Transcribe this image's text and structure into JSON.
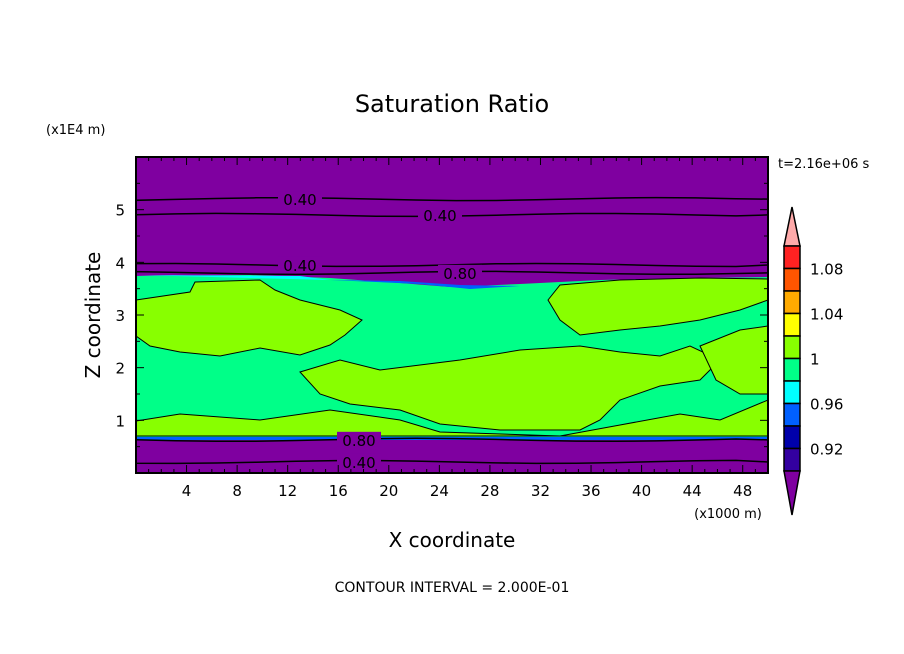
{
  "chart_data": {
    "type": "contour",
    "title": "Saturation Ratio",
    "xlabel": "X coordinate",
    "ylabel": "Z coordinate",
    "x_units": "(x1000 m)",
    "y_units": "(x1E4 m)",
    "time_label": "t=2.16e+06 s",
    "footer": "CONTOUR INTERVAL = 2.000E-01",
    "xlim": [
      0,
      50
    ],
    "ylim": [
      0,
      6
    ],
    "x_ticks": [
      4,
      8,
      12,
      16,
      20,
      24,
      28,
      32,
      36,
      40,
      44,
      48
    ],
    "y_ticks": [
      1,
      2,
      3,
      4,
      5
    ],
    "contour_lines": [
      {
        "level": "0.40",
        "z": 5.2
      },
      {
        "level": "0.40",
        "z": 4.9
      },
      {
        "level": "0.40",
        "z": 3.95
      },
      {
        "level": "0.80",
        "z": 3.8
      },
      {
        "level": "0.80",
        "z": 0.63
      },
      {
        "level": "0.40",
        "z": 0.21
      }
    ],
    "colorbar": {
      "labels": [
        "1.08",
        "1.04",
        "1",
        "0.96",
        "0.92"
      ],
      "label_levels": [
        1.08,
        1.04,
        1.0,
        0.96,
        0.92
      ],
      "colors_top_to_bottom": [
        "#ffaaaa",
        "#ff2222",
        "#ff5500",
        "#ffaa00",
        "#ffff00",
        "#88ff00",
        "#00ff88",
        "#00ffff",
        "#0060ff",
        "#0000aa",
        "#3300a0",
        "#7f00a0"
      ],
      "boundaries": [
        1.1,
        1.08,
        1.06,
        1.04,
        1.02,
        1.0,
        0.98,
        0.96,
        0.94,
        0.92,
        0.9
      ]
    }
  }
}
